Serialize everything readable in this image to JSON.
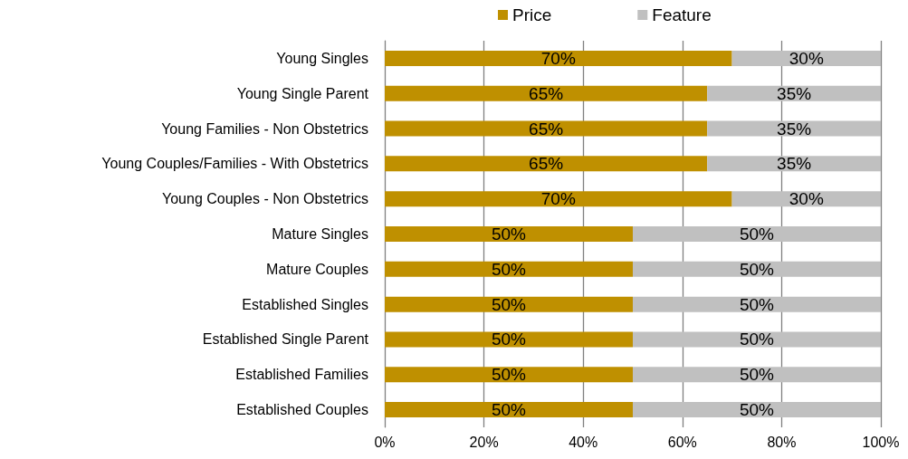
{
  "chart_data": {
    "type": "bar",
    "orientation": "horizontal",
    "stacked": true,
    "categories": [
      "Young Singles",
      "Young Single Parent",
      "Young Families - Non Obstetrics",
      "Young Couples/Families - With Obstetrics",
      "Young Couples - Non Obstetrics",
      "Mature Singles",
      "Mature Couples",
      "Established Singles",
      "Established Single Parent",
      "Established Families",
      "Established Couples"
    ],
    "series": [
      {
        "name": "Price",
        "color": "#bf9000",
        "values": [
          70,
          65,
          65,
          65,
          70,
          50,
          50,
          50,
          50,
          50,
          50
        ],
        "value_labels": [
          "70%",
          "65%",
          "65%",
          "65%",
          "70%",
          "50%",
          "50%",
          "50%",
          "50%",
          "50%",
          "50%"
        ]
      },
      {
        "name": "Feature",
        "color": "#c0c0c0",
        "values": [
          30,
          35,
          35,
          35,
          30,
          50,
          50,
          50,
          50,
          50,
          50
        ],
        "value_labels": [
          "30%",
          "35%",
          "35%",
          "35%",
          "30%",
          "50%",
          "50%",
          "50%",
          "50%",
          "50%",
          "50%"
        ]
      }
    ],
    "xlim": [
      0,
      100
    ],
    "xticks": [
      {
        "value": 0,
        "label": "0%"
      },
      {
        "value": 20,
        "label": "20%"
      },
      {
        "value": 40,
        "label": "40%"
      },
      {
        "value": 60,
        "label": "60%"
      },
      {
        "value": 80,
        "label": "80%"
      },
      {
        "value": 100,
        "label": "100%"
      }
    ],
    "grid": "x",
    "legend": "top"
  }
}
